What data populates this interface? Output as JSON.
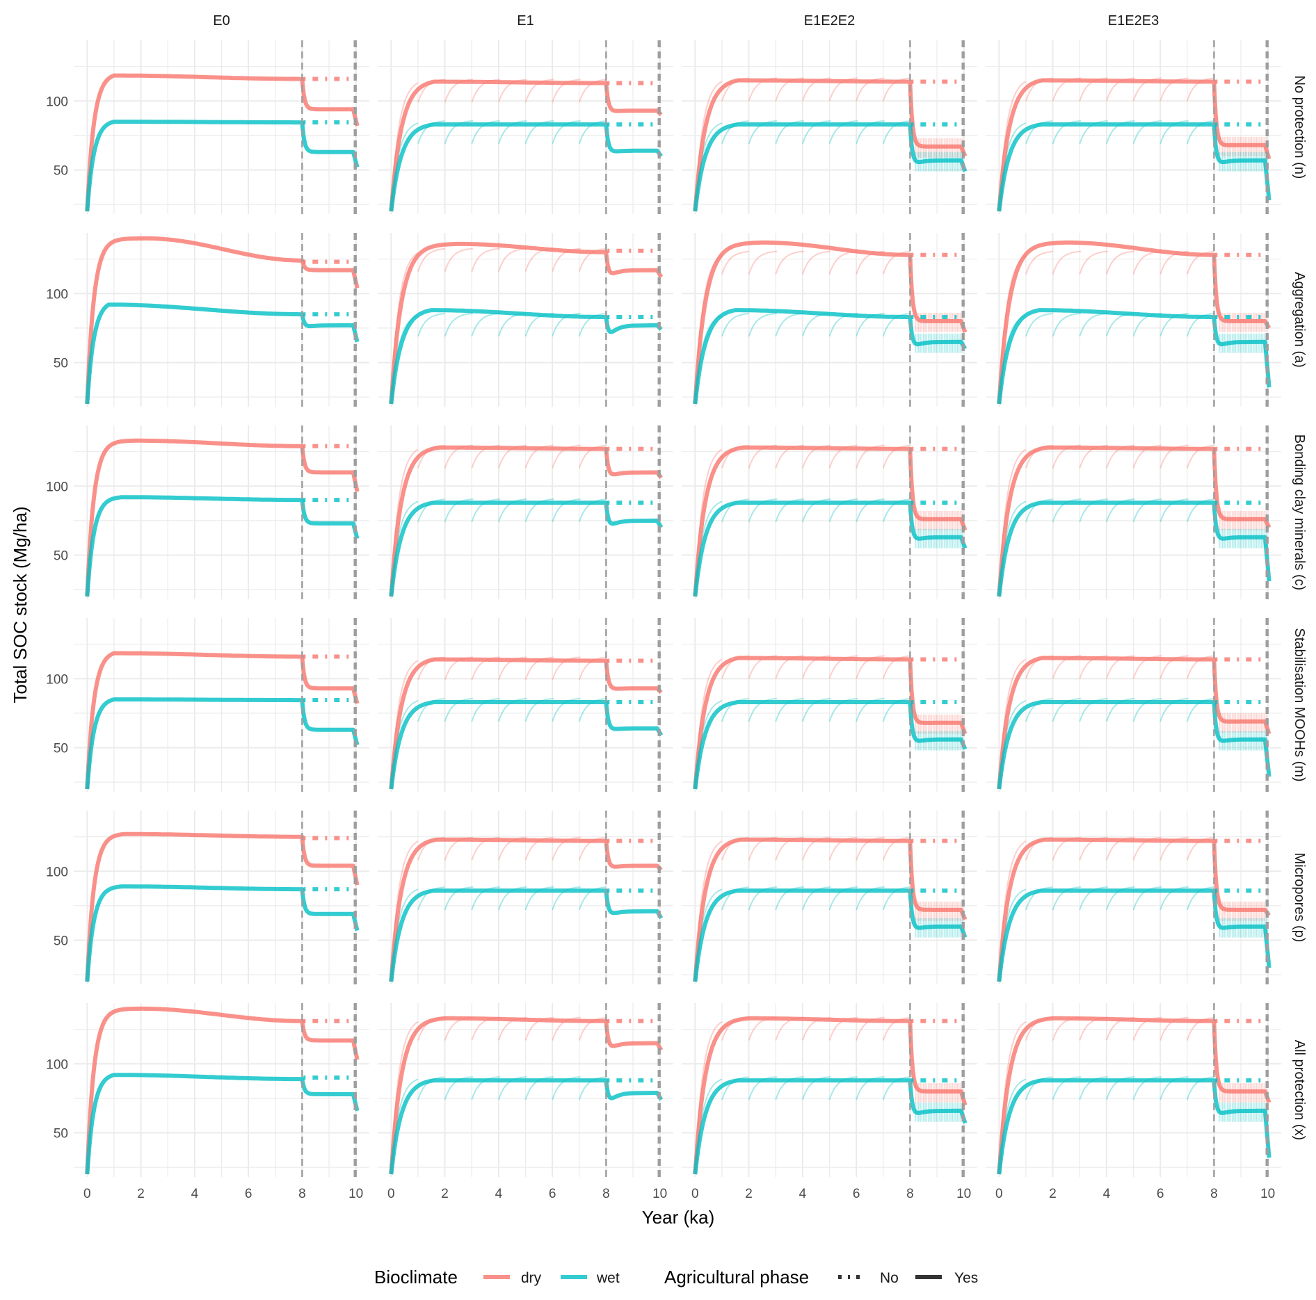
{
  "chart_data": {
    "type": "line",
    "facet_columns": [
      "E0",
      "E1",
      "E1E2E2",
      "E1E2E3"
    ],
    "facet_rows": [
      "No protection (n)",
      "Aggregation (a)",
      "Bonding clay minerals (c)",
      "Stabilisation MOOHs (m)",
      "Micropores (p)",
      "All protection (x)"
    ],
    "xlabel": "Year (ka)",
    "ylabel": "Total SOC stock (Mg/ha)",
    "xlim": [
      -0.5,
      10.5
    ],
    "ylim": [
      18,
      144
    ],
    "xticks": [
      "0",
      "2",
      "4",
      "6",
      "8",
      "10"
    ],
    "yticks": [
      "50",
      "100"
    ],
    "vlines": [
      8,
      9.95,
      10
    ],
    "grid": true,
    "legend_position": "bottom",
    "legend": {
      "bioclimate_title": "Bioclimate",
      "bioclimate": [
        {
          "label": "dry",
          "color": "#F8766D"
        },
        {
          "label": "wet",
          "color": "#00BFC4"
        }
      ],
      "agri_title": "Agricultural phase",
      "agri": [
        {
          "label": "No",
          "style": "dotted"
        },
        {
          "label": "Yes",
          "style": "solid"
        }
      ]
    },
    "series_fields": [
      "peak",
      "peak_year",
      "value_at_8",
      "min_after_8",
      "value_9_to_10",
      "end_value",
      "no_agri_value"
    ],
    "panels": [
      [
        {
          "dry": [
            118.5,
            1.0,
            116,
            94,
            94,
            82,
            116
          ],
          "wet": [
            85,
            1.0,
            84.5,
            63,
            63,
            52,
            84.5
          ]
        },
        {
          "dry": [
            114,
            1.6,
            113,
            91,
            93,
            90,
            113
          ],
          "wet": [
            83,
            1.6,
            83,
            61,
            64,
            60,
            83
          ]
        },
        {
          "dry": [
            115,
            1.6,
            114,
            67,
            67,
            60,
            114
          ],
          "wet": [
            83,
            1.6,
            83,
            50,
            57,
            49,
            83
          ]
        },
        {
          "dry": [
            115,
            1.6,
            114,
            67,
            68,
            58,
            114
          ],
          "wet": [
            83,
            1.6,
            83,
            50,
            57,
            28,
            83
          ]
        }
      ],
      [
        {
          "dry": [
            140,
            2.2,
            124,
            117,
            117,
            104,
            123
          ],
          "wet": [
            92,
            0.8,
            85,
            74,
            77,
            65,
            85
          ]
        },
        {
          "dry": [
            136,
            2.5,
            130,
            108,
            117,
            112,
            131
          ],
          "wet": [
            88,
            1.5,
            83,
            62,
            77,
            74,
            83
          ]
        },
        {
          "dry": [
            137,
            2.5,
            128,
            80,
            80,
            72,
            128
          ],
          "wet": [
            88,
            1.5,
            83,
            57,
            65,
            60,
            83
          ]
        },
        {
          "dry": [
            137,
            2.5,
            128,
            80,
            80,
            75,
            128
          ],
          "wet": [
            88,
            1.5,
            83,
            57,
            65,
            32,
            83
          ]
        }
      ],
      [
        {
          "dry": [
            133,
            1.8,
            129,
            110,
            110,
            96,
            129
          ],
          "wet": [
            92,
            1.3,
            90,
            73,
            73,
            62,
            90
          ]
        },
        {
          "dry": [
            128,
            1.8,
            127,
            103,
            110,
            106,
            127
          ],
          "wet": [
            88,
            1.6,
            88,
            66,
            75,
            70,
            88
          ]
        },
        {
          "dry": [
            128,
            1.8,
            127,
            76,
            76,
            68,
            127
          ],
          "wet": [
            88,
            1.6,
            88,
            57,
            63,
            55,
            88
          ]
        },
        {
          "dry": [
            128,
            1.8,
            127,
            76,
            76,
            70,
            127
          ],
          "wet": [
            88,
            1.6,
            88,
            57,
            63,
            31,
            88
          ]
        }
      ],
      [
        {
          "dry": [
            118.5,
            1.0,
            116,
            93,
            93,
            82,
            116
          ],
          "wet": [
            85,
            1.0,
            84.5,
            63,
            63,
            52,
            84.5
          ]
        },
        {
          "dry": [
            114,
            1.6,
            113,
            91,
            93,
            90,
            113
          ],
          "wet": [
            83,
            1.6,
            83,
            61,
            64,
            59,
            83
          ]
        },
        {
          "dry": [
            115,
            1.6,
            114,
            67,
            68,
            60,
            114
          ],
          "wet": [
            83,
            1.6,
            83,
            50,
            56,
            49,
            83
          ]
        },
        {
          "dry": [
            115,
            1.6,
            114,
            68,
            69,
            60,
            114
          ],
          "wet": [
            83,
            1.6,
            83,
            50,
            56,
            29,
            83
          ]
        }
      ],
      [
        {
          "dry": [
            127,
            1.4,
            125,
            104,
            104,
            90,
            124
          ],
          "wet": [
            89,
            1.3,
            87,
            69,
            69,
            57,
            87
          ]
        },
        {
          "dry": [
            123,
            1.7,
            122,
            100,
            104,
            101,
            122
          ],
          "wet": [
            86,
            1.6,
            86,
            65,
            71,
            66,
            86
          ]
        },
        {
          "dry": [
            123,
            1.7,
            122,
            72,
            72,
            65,
            122
          ],
          "wet": [
            86,
            1.6,
            86,
            54,
            60,
            52,
            86
          ]
        },
        {
          "dry": [
            123,
            1.7,
            122,
            72,
            72,
            68,
            122
          ],
          "wet": [
            86,
            1.6,
            86,
            54,
            60,
            30,
            86
          ]
        }
      ],
      [
        {
          "dry": [
            140,
            2.0,
            131,
            117,
            117,
            103,
            131
          ],
          "wet": [
            92,
            1.0,
            89,
            78,
            78,
            66,
            90
          ]
        },
        {
          "dry": [
            133,
            2.0,
            131,
            106,
            115,
            110,
            131
          ],
          "wet": [
            88,
            1.6,
            88,
            66,
            79,
            74,
            88
          ]
        },
        {
          "dry": [
            133,
            2.0,
            131,
            80,
            80,
            70,
            131
          ],
          "wet": [
            88,
            1.6,
            88,
            58,
            66,
            57,
            88
          ]
        },
        {
          "dry": [
            133,
            2.0,
            131,
            80,
            80,
            72,
            131
          ],
          "wet": [
            88,
            1.6,
            88,
            58,
            66,
            32,
            88
          ]
        }
      ]
    ]
  }
}
